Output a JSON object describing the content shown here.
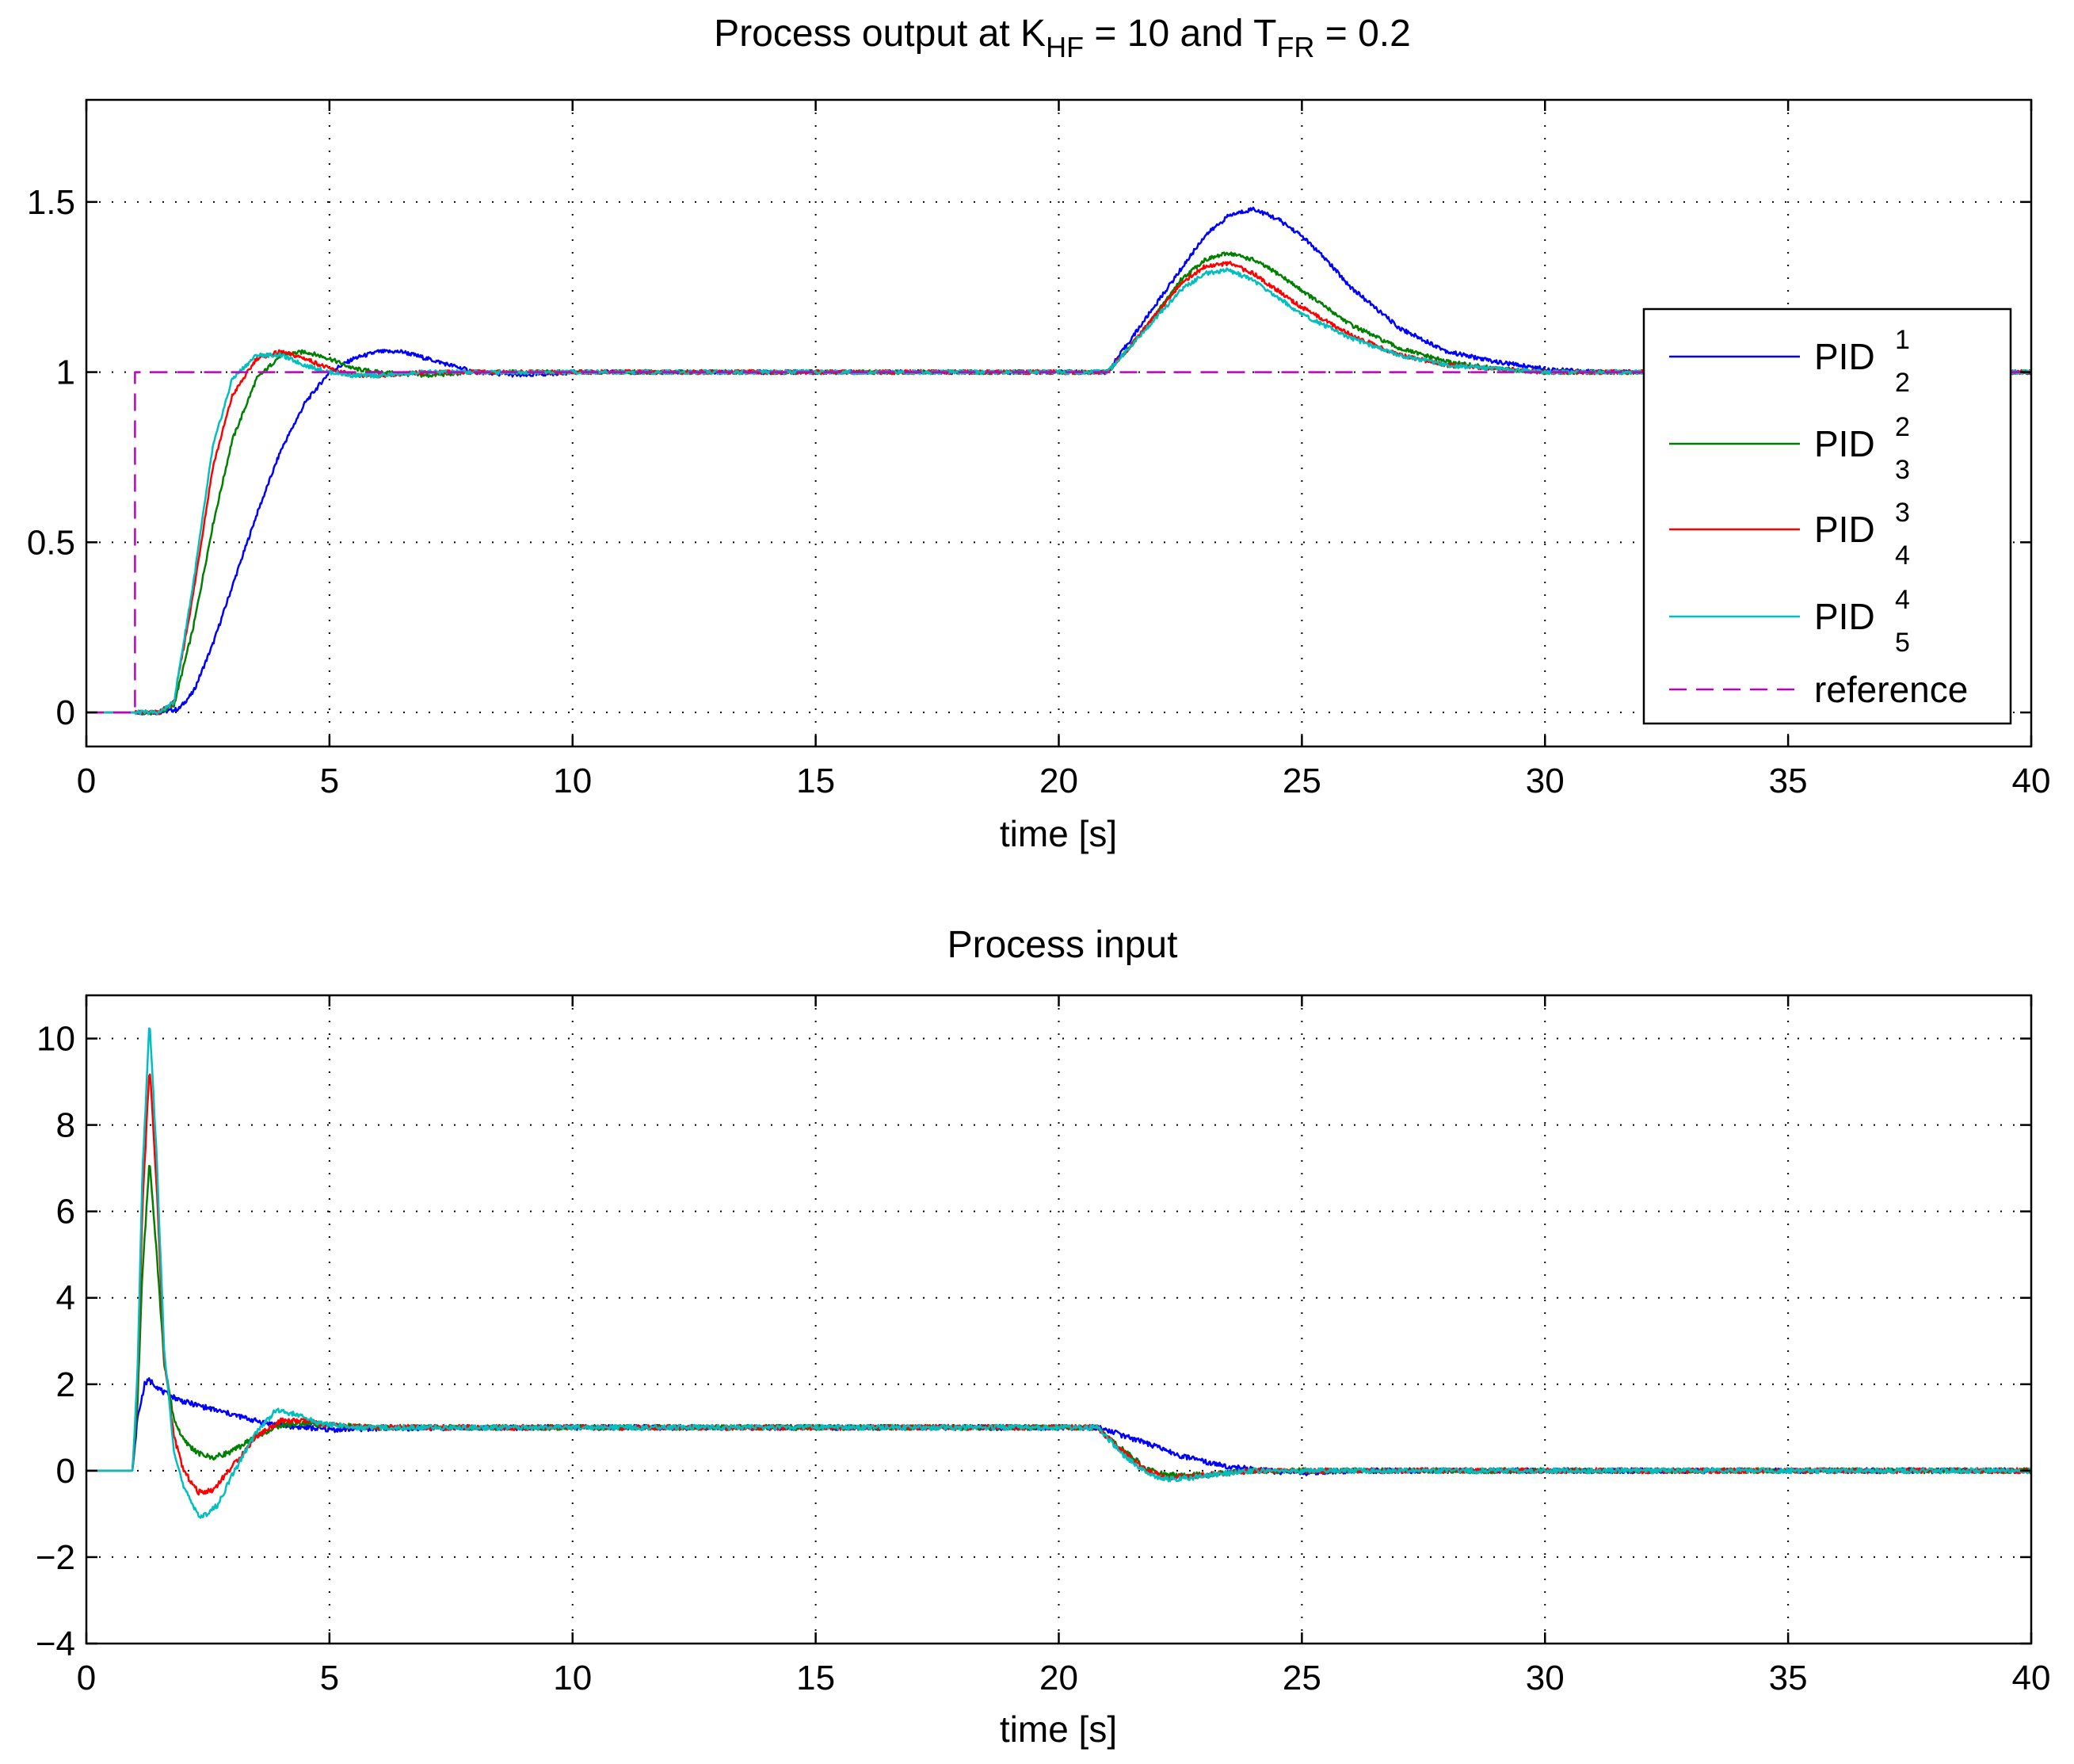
{
  "chart_data": [
    {
      "type": "line",
      "title_parts": [
        "Process output at K",
        "HF",
        " = 10 and T",
        "FR",
        " = 0.2"
      ],
      "xlabel": "time [s]",
      "ylabel": "",
      "xlim": [
        0,
        40
      ],
      "ylim": [
        -0.1,
        1.8
      ],
      "xticks": [
        "0",
        "5",
        "10",
        "15",
        "20",
        "25",
        "30",
        "35",
        "40"
      ],
      "yticks": [
        "0",
        "0.5",
        "1",
        "1.5"
      ],
      "grid": true,
      "legend": "right",
      "series": [
        {
          "name": "PID",
          "sup": "1",
          "sub": "2",
          "color": "#0000ff",
          "x": [
            0,
            1.5,
            1.9,
            2.2,
            2.6,
            3.0,
            3.5,
            4.0,
            4.5,
            5.0,
            5.5,
            6.0,
            6.5,
            7.0,
            7.5,
            8.0,
            9.0,
            10,
            12,
            15,
            18,
            20,
            21,
            21.5,
            22,
            22.5,
            23,
            23.5,
            24,
            24.5,
            25,
            25.5,
            26,
            27,
            28,
            29,
            30,
            31,
            32,
            35,
            40
          ],
          "y": [
            0,
            0,
            0.01,
            0.06,
            0.2,
            0.37,
            0.58,
            0.77,
            0.91,
            1.0,
            1.04,
            1.06,
            1.06,
            1.04,
            1.02,
            1.0,
            0.99,
            1.0,
            1.0,
            1.0,
            1.0,
            1.0,
            1.0,
            1.1,
            1.2,
            1.3,
            1.4,
            1.46,
            1.48,
            1.45,
            1.4,
            1.33,
            1.25,
            1.13,
            1.06,
            1.03,
            1.01,
            1.0,
            1.0,
            1.0,
            1.0
          ]
        },
        {
          "name": "PID",
          "sup": "2",
          "sub": "3",
          "color": "#008000",
          "x": [
            0,
            1.5,
            1.8,
            2.2,
            2.6,
            3.0,
            3.5,
            4.0,
            4.5,
            5.0,
            5.5,
            6.0,
            7.0,
            8.0,
            10,
            15,
            20,
            21,
            21.5,
            22,
            22.5,
            23,
            23.5,
            24,
            24.5,
            25,
            26,
            27,
            28,
            29,
            30,
            32,
            35,
            40
          ],
          "y": [
            0,
            0,
            0.02,
            0.25,
            0.55,
            0.8,
            0.98,
            1.05,
            1.06,
            1.04,
            1.01,
            1.0,
            0.99,
            1.0,
            1.0,
            1.0,
            1.0,
            1.0,
            1.08,
            1.17,
            1.27,
            1.33,
            1.35,
            1.33,
            1.29,
            1.24,
            1.14,
            1.07,
            1.03,
            1.01,
            1.0,
            1.0,
            1.0,
            1.0
          ]
        },
        {
          "name": "PID",
          "sup": "3",
          "sub": "4",
          "color": "#ff0000",
          "x": [
            0,
            1.5,
            1.8,
            2.2,
            2.6,
            3.0,
            3.5,
            4.0,
            4.5,
            5.0,
            5.5,
            6.0,
            7.0,
            8.0,
            10,
            15,
            20,
            21,
            21.5,
            22,
            22.5,
            23,
            23.5,
            24,
            24.5,
            25,
            26,
            27,
            28,
            29,
            30,
            32,
            35,
            40
          ],
          "y": [
            0,
            0,
            0.03,
            0.35,
            0.72,
            0.93,
            1.04,
            1.06,
            1.04,
            1.01,
            0.99,
            0.99,
            1.0,
            1.0,
            1.0,
            1.0,
            1.0,
            1.0,
            1.08,
            1.17,
            1.26,
            1.31,
            1.32,
            1.29,
            1.24,
            1.19,
            1.11,
            1.05,
            1.02,
            1.01,
            1.0,
            1.0,
            1.0,
            1.0
          ]
        },
        {
          "name": "PID",
          "sup": "4",
          "sub": "5",
          "color": "#00bfbf",
          "x": [
            0,
            1.5,
            1.8,
            2.2,
            2.6,
            3.0,
            3.5,
            4.0,
            4.5,
            5.0,
            5.5,
            6.0,
            7.0,
            8.0,
            10,
            15,
            20,
            21,
            21.5,
            22,
            22.5,
            23,
            23.5,
            24,
            24.5,
            25,
            26,
            27,
            28,
            29,
            30,
            32,
            35,
            40
          ],
          "y": [
            0,
            0,
            0.03,
            0.38,
            0.78,
            0.98,
            1.05,
            1.05,
            1.02,
            1.0,
            0.99,
            0.99,
            1.0,
            1.0,
            1.0,
            1.0,
            1.0,
            1.0,
            1.08,
            1.16,
            1.24,
            1.29,
            1.3,
            1.27,
            1.22,
            1.17,
            1.1,
            1.05,
            1.02,
            1.01,
            1.0,
            1.0,
            1.0,
            1.0
          ]
        },
        {
          "name": "reference",
          "color": "#bf00bf",
          "dashed": true,
          "x": [
            0,
            1.0,
            1.0,
            40
          ],
          "y": [
            0,
            0,
            1,
            1
          ]
        }
      ]
    },
    {
      "type": "line",
      "title": "Process input",
      "xlabel": "time [s]",
      "ylabel": "",
      "xlim": [
        0,
        40
      ],
      "ylim": [
        -4,
        11
      ],
      "xticks": [
        "0",
        "5",
        "10",
        "15",
        "20",
        "25",
        "30",
        "35",
        "40"
      ],
      "yticks": [
        "−4",
        "−2",
        "0",
        "2",
        "4",
        "6",
        "8",
        "10"
      ],
      "grid": true,
      "series": [
        {
          "name": "PID",
          "sup": "1",
          "sub": "2",
          "color": "#0000ff",
          "x": [
            0,
            0.95,
            1.05,
            1.2,
            1.3,
            1.6,
            2.0,
            2.5,
            3.0,
            3.5,
            4.0,
            4.5,
            5.0,
            6.0,
            8.0,
            10,
            15,
            20,
            20.8,
            21.5,
            22,
            22.5,
            23,
            23.5,
            24,
            24.5,
            25,
            26,
            30,
            35,
            40
          ],
          "y": [
            0,
            0,
            1.2,
            2.0,
            2.1,
            1.8,
            1.6,
            1.45,
            1.3,
            1.15,
            1.05,
            1.0,
            0.95,
            0.98,
            1.0,
            1.0,
            1.0,
            1.0,
            1.0,
            0.75,
            0.55,
            0.35,
            0.2,
            0.1,
            0.03,
            -0.02,
            -0.05,
            0.0,
            0.0,
            0.0,
            0.0
          ]
        },
        {
          "name": "PID",
          "sup": "2",
          "sub": "3",
          "color": "#008000",
          "x": [
            0,
            0.95,
            1.05,
            1.15,
            1.3,
            1.45,
            1.6,
            1.8,
            2.0,
            2.3,
            2.6,
            3.0,
            3.5,
            4.0,
            4.5,
            5.0,
            6.0,
            8.0,
            10,
            15,
            20,
            20.8,
            21.3,
            21.8,
            22.2,
            22.8,
            23.5,
            24,
            25,
            30,
            35,
            40
          ],
          "y": [
            0,
            0,
            1.5,
            4.5,
            7.2,
            5.0,
            2.5,
            1.2,
            0.7,
            0.4,
            0.3,
            0.45,
            0.8,
            1.05,
            1.1,
            1.05,
            1.0,
            1.0,
            1.0,
            1.0,
            1.0,
            1.0,
            0.5,
            0.05,
            -0.1,
            -0.1,
            -0.05,
            0.0,
            0.0,
            0.0,
            0.0,
            0.0
          ]
        },
        {
          "name": "PID",
          "sup": "3",
          "sub": "4",
          "color": "#ff0000",
          "x": [
            0,
            0.95,
            1.05,
            1.15,
            1.3,
            1.45,
            1.6,
            1.8,
            2.0,
            2.3,
            2.6,
            3.0,
            3.5,
            4.0,
            4.5,
            5.0,
            6.0,
            8.0,
            10,
            15,
            20,
            20.8,
            21.3,
            21.8,
            22.2,
            22.8,
            23.5,
            24,
            25,
            30,
            35,
            40
          ],
          "y": [
            0,
            0,
            2.0,
            6.0,
            9.4,
            6.5,
            2.6,
            0.8,
            0.0,
            -0.5,
            -0.45,
            0.1,
            0.8,
            1.15,
            1.15,
            1.05,
            1.0,
            1.0,
            1.0,
            1.0,
            1.0,
            1.0,
            0.45,
            0.0,
            -0.15,
            -0.12,
            -0.05,
            0.0,
            0.0,
            0.0,
            0.0,
            0.0
          ]
        },
        {
          "name": "PID",
          "sup": "4",
          "sub": "5",
          "color": "#00bfbf",
          "x": [
            0,
            0.95,
            1.05,
            1.15,
            1.3,
            1.45,
            1.6,
            1.8,
            2.0,
            2.35,
            2.7,
            3.0,
            3.5,
            3.9,
            4.3,
            4.8,
            5.5,
            6.0,
            8.0,
            10,
            15,
            20,
            20.8,
            21.3,
            21.8,
            22.2,
            22.8,
            23.5,
            24,
            25,
            30,
            35,
            40
          ],
          "y": [
            0,
            0,
            2.2,
            6.8,
            10.4,
            7.2,
            2.8,
            0.5,
            -0.4,
            -1.1,
            -0.8,
            -0.1,
            0.9,
            1.4,
            1.3,
            1.1,
            1.0,
            1.0,
            1.0,
            1.0,
            1.0,
            1.0,
            1.0,
            0.4,
            -0.05,
            -0.2,
            -0.15,
            -0.05,
            0.0,
            0.0,
            0.0,
            0.0,
            0.0
          ]
        }
      ]
    }
  ]
}
